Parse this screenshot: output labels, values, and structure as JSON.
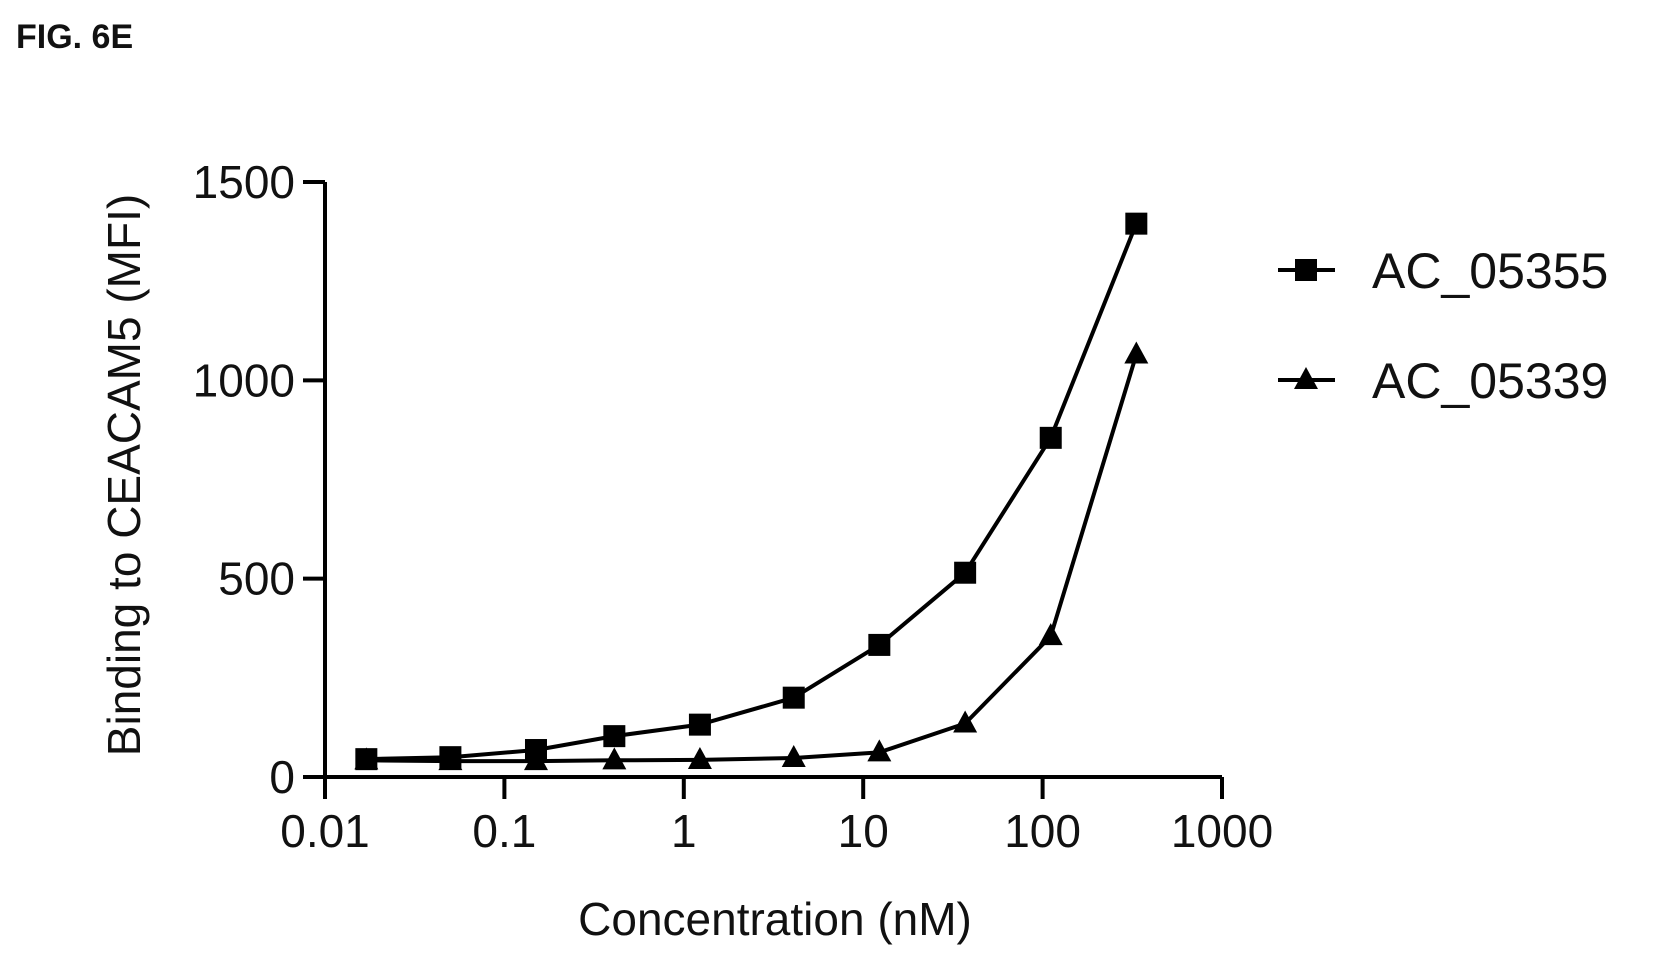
{
  "figure_label": "FIG. 6E",
  "chart_data": {
    "type": "line",
    "xscale": "log",
    "x": [
      0.017,
      0.05,
      0.15,
      0.41,
      1.23,
      4.1,
      12.3,
      37,
      111,
      333
    ],
    "series": [
      {
        "name": "AC_05355",
        "marker": "square",
        "color": "#000000",
        "values": [
          45,
          50,
          68,
          103,
          132,
          200,
          333,
          515,
          855,
          1395
        ]
      },
      {
        "name": "AC_05339",
        "marker": "triangle",
        "color": "#000000",
        "values": [
          42,
          40,
          40,
          42,
          43,
          48,
          62,
          135,
          355,
          1065
        ]
      }
    ],
    "xlabel": "Concentration (nM)",
    "ylabel": "Binding to CEACAM5 (MFI)",
    "xlim": [
      0.01,
      1000
    ],
    "ylim": [
      0,
      1500
    ],
    "xticks": [
      0.01,
      0.1,
      1,
      10,
      100,
      1000
    ],
    "xtick_labels": [
      "0.01",
      "0.1",
      "1",
      "10",
      "100",
      "1000"
    ],
    "yticks": [
      0,
      500,
      1000,
      1500
    ],
    "ytick_labels": [
      "0",
      "500",
      "1000",
      "1500"
    ],
    "grid": false,
    "legend_position": "right"
  }
}
